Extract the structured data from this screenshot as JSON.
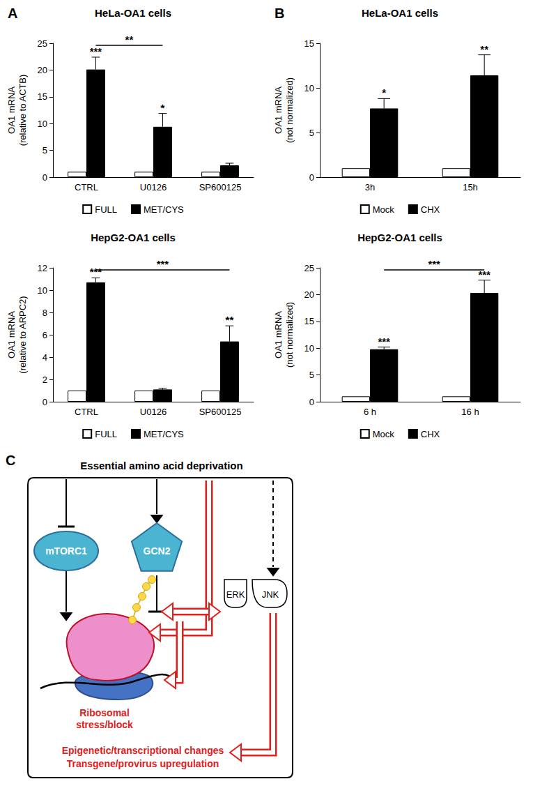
{
  "chart_data": [
    {
      "panel": "A",
      "type": "bar",
      "title": "HeLa-OA1 cells",
      "y_label": "OA1 mRNA\n(relative to ACTB)",
      "categories": [
        "CTRL",
        "U0126",
        "SP600125"
      ],
      "series": [
        {
          "name": "FULL",
          "color": "#ffffff",
          "values": [
            1,
            1,
            1
          ]
        },
        {
          "name": "MET/CYS",
          "color": "#000000",
          "values": [
            20.1,
            9.4,
            2.2
          ],
          "errors": [
            2.3,
            2.5,
            0.4
          ]
        }
      ],
      "ylim": [
        0,
        25
      ],
      "yticks": [
        0,
        5,
        10,
        15,
        20,
        25
      ],
      "grid": false,
      "legend": "bottom",
      "annotations": [
        {
          "text": "***",
          "category": "CTRL",
          "series": "MET/CYS"
        },
        {
          "text": "*",
          "category": "U0126",
          "series": "MET/CYS"
        }
      ],
      "brackets": [
        {
          "text": "**",
          "from": "CTRL",
          "to": "U0126",
          "series": "MET/CYS"
        }
      ]
    },
    {
      "type": "bar",
      "title": "HepG2-OA1 cells",
      "y_label": "OA1 mRNA\n(relative to ARPC2)",
      "categories": [
        "CTRL",
        "U0126",
        "SP600125"
      ],
      "series": [
        {
          "name": "FULL",
          "color": "#ffffff",
          "values": [
            1,
            1,
            1
          ]
        },
        {
          "name": "MET/CYS",
          "color": "#000000",
          "values": [
            10.7,
            1.1,
            5.4
          ],
          "errors": [
            0.4,
            0.1,
            1.4
          ]
        }
      ],
      "ylim": [
        0,
        12
      ],
      "yticks": [
        0,
        2,
        4,
        6,
        8,
        10,
        12
      ],
      "grid": false,
      "legend": "bottom",
      "annotations": [
        {
          "text": "***",
          "category": "CTRL",
          "series": "MET/CYS"
        },
        {
          "text": "**",
          "category": "SP600125",
          "series": "MET/CYS"
        }
      ],
      "brackets": [
        {
          "text": "***",
          "from": "CTRL",
          "to": "SP600125",
          "series": "MET/CYS"
        }
      ]
    },
    {
      "panel": "B",
      "type": "bar",
      "title": "HeLa-OA1 cells",
      "y_label": "OA1 mRNA\n(not normalized)",
      "categories": [
        "3h",
        "15h"
      ],
      "series": [
        {
          "name": "Mock",
          "color": "#ffffff",
          "values": [
            1,
            1
          ]
        },
        {
          "name": "CHX",
          "color": "#000000",
          "values": [
            7.7,
            11.4
          ],
          "errors": [
            1.1,
            2.3
          ]
        }
      ],
      "ylim": [
        0,
        15
      ],
      "yticks": [
        0,
        5,
        10,
        15
      ],
      "grid": false,
      "legend": "bottom",
      "annotations": [
        {
          "text": "*",
          "category": "3h",
          "series": "CHX"
        },
        {
          "text": "**",
          "category": "15h",
          "series": "CHX"
        }
      ],
      "brackets": []
    },
    {
      "type": "bar",
      "title": "HepG2-OA1 cells",
      "y_label": "OA1 mRNA\n(not normalized)",
      "categories": [
        "6 h",
        "16 h"
      ],
      "series": [
        {
          "name": "Mock",
          "color": "#ffffff",
          "values": [
            1,
            1
          ]
        },
        {
          "name": "CHX",
          "color": "#000000",
          "values": [
            9.8,
            20.3
          ],
          "errors": [
            0.4,
            2.4
          ]
        }
      ],
      "ylim": [
        0,
        25
      ],
      "yticks": [
        0,
        5,
        10,
        15,
        20,
        25
      ],
      "grid": false,
      "legend": "bottom",
      "annotations": [
        {
          "text": "***",
          "category": "6 h",
          "series": "CHX"
        },
        {
          "text": "***",
          "category": "16 h",
          "series": "CHX"
        }
      ],
      "brackets": [
        {
          "text": "***",
          "from": "6 h",
          "to": "16 h",
          "series": "CHX"
        }
      ]
    }
  ],
  "diagram": {
    "label": "C",
    "heading": "Essential amino acid deprivation",
    "nodes": {
      "mtorc1": "mTORC1",
      "gcn2": "GCN2",
      "erk": "ERK",
      "jnk": "JNK"
    },
    "ribosome": "Ribosomal stress/block",
    "outcomes": [
      "Epigenetic/transcriptional changes",
      "Transgene/provirus upregulation"
    ]
  }
}
